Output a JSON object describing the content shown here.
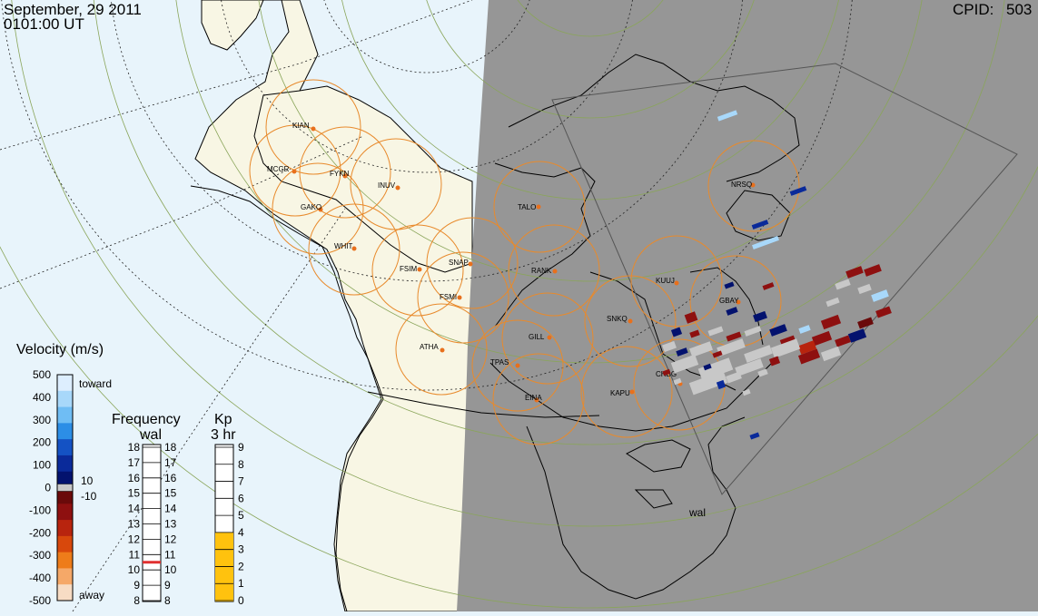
{
  "header": {
    "date": "September, 29 2011",
    "time": "0101:00 UT",
    "cpid_label": "CPID:",
    "cpid_value": "503"
  },
  "colors": {
    "ocean": "#e8f4fb",
    "land_day": "#f8f6e4",
    "night_shade": "#969696",
    "radar_circle": "#e88a2c",
    "station_dot": "#e8701c",
    "toward_scale": [
      "#ddeefe",
      "#a8d8fa",
      "#6fbdf4",
      "#2c8ee6",
      "#1452c4",
      "#0a2a9a",
      "#03126e"
    ],
    "away_scale": [
      "#6a0a0a",
      "#8e1010",
      "#b8240e",
      "#d8480c",
      "#ee7c1a",
      "#f5a868",
      "#f7dcc4"
    ],
    "kp_fill": "#ffc20e",
    "freq_marker": "#e03030"
  },
  "stations": [
    {
      "code": "KIAN"
    },
    {
      "code": "MCGR"
    },
    {
      "code": "FYKN"
    },
    {
      "code": "INUV"
    },
    {
      "code": "GAKO"
    },
    {
      "code": "WHIT"
    },
    {
      "code": "FSIM"
    },
    {
      "code": "SNAP"
    },
    {
      "code": "FSMI"
    },
    {
      "code": "ATHA"
    },
    {
      "code": "TALO"
    },
    {
      "code": "RANK"
    },
    {
      "code": "GILL"
    },
    {
      "code": "TPAS"
    },
    {
      "code": "EINA"
    },
    {
      "code": "SNKQ"
    },
    {
      "code": "KUUJ"
    },
    {
      "code": "GBAY"
    },
    {
      "code": "NRSQ"
    },
    {
      "code": "CHBG"
    },
    {
      "code": "KAPU"
    }
  ],
  "radar_label": "wal",
  "velocity_legend": {
    "title": "Velocity (m/s)",
    "ticks": [
      "500",
      "400",
      "300",
      "200",
      "100",
      "0",
      "-100",
      "-200",
      "-300",
      "-400",
      "-500"
    ],
    "toward_label": "toward",
    "away_label": "away",
    "threshold_pos": "10",
    "threshold_neg": "-10"
  },
  "frequency_legend": {
    "title": "Frequency",
    "subtitle": "wal",
    "ticks": [
      "18",
      "17",
      "16",
      "15",
      "14",
      "13",
      "12",
      "11",
      "10",
      "9",
      "8"
    ],
    "current_mhz": 10.5
  },
  "kp_legend": {
    "title": "Kp",
    "subtitle": "3 hr",
    "ticks": [
      "9",
      "8",
      "7",
      "6",
      "5",
      "4",
      "3",
      "2",
      "1",
      "0"
    ],
    "current_value": 4
  }
}
